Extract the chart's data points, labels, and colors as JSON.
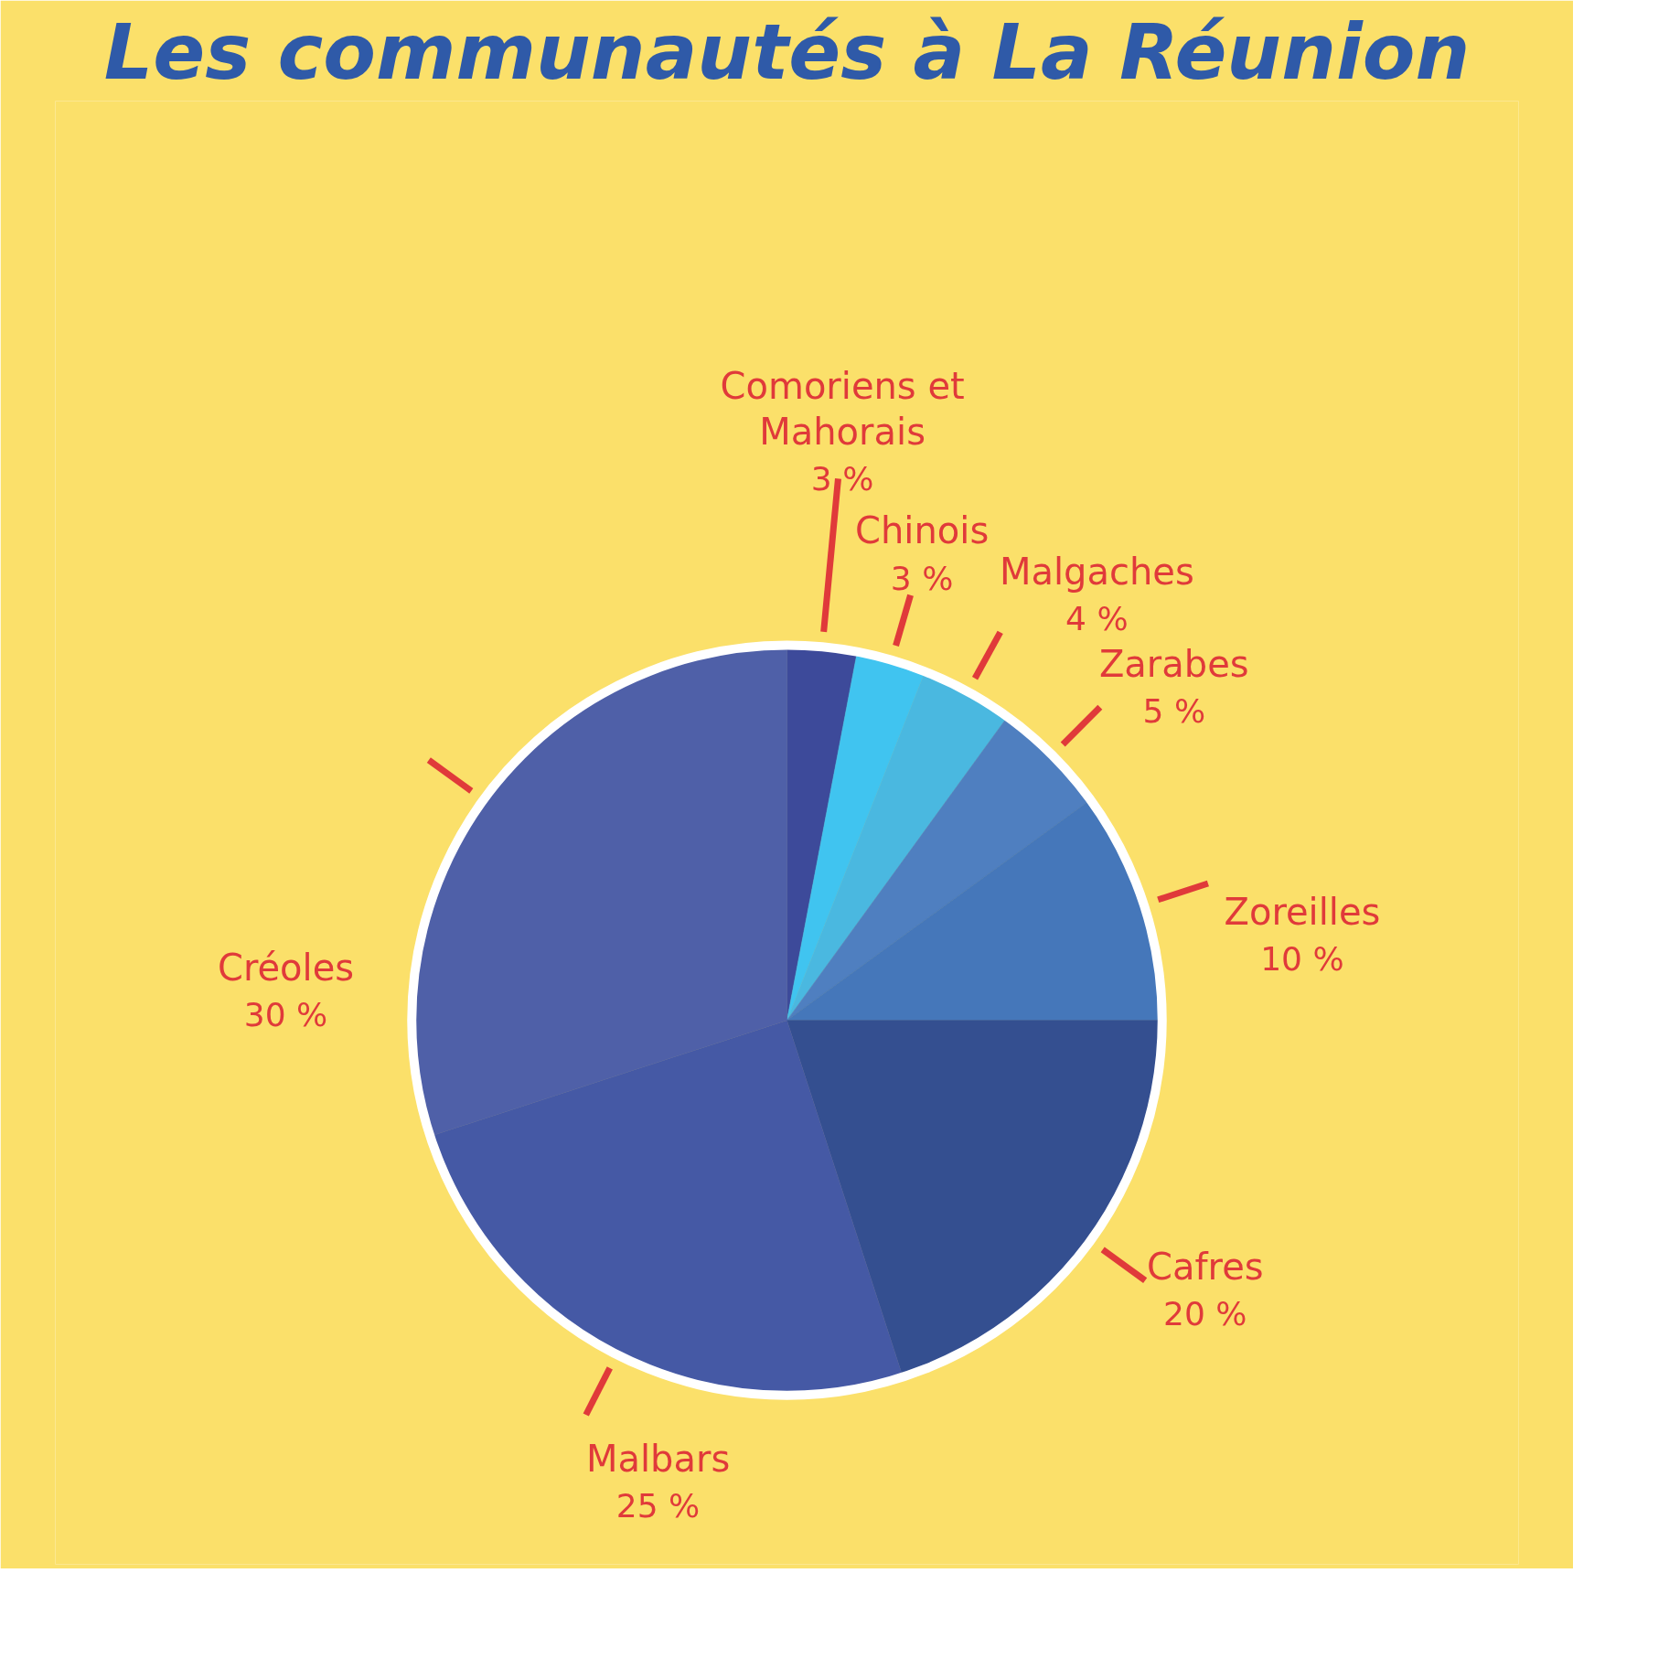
{
  "chart_data": {
    "type": "pie",
    "title": "Les communautés à La Réunion",
    "categories": [
      "Comoriens et Mahorais",
      "Chinois",
      "Malgaches",
      "Zarabes",
      "Zoreilles",
      "Cafres",
      "Malbars",
      "Créoles"
    ],
    "values": [
      3,
      3,
      4,
      5,
      10,
      20,
      25,
      30
    ],
    "value_labels": [
      "3 %",
      "3 %",
      "4 %",
      "5 %",
      "10 %",
      "20 %",
      "25 %",
      "30 %"
    ],
    "colors": [
      "#3d4a9a",
      "#40c4f0",
      "#4ab8e0",
      "#4f7fc0",
      "#4577ba",
      "#344f90",
      "#4559a5",
      "#4f60a8"
    ]
  }
}
